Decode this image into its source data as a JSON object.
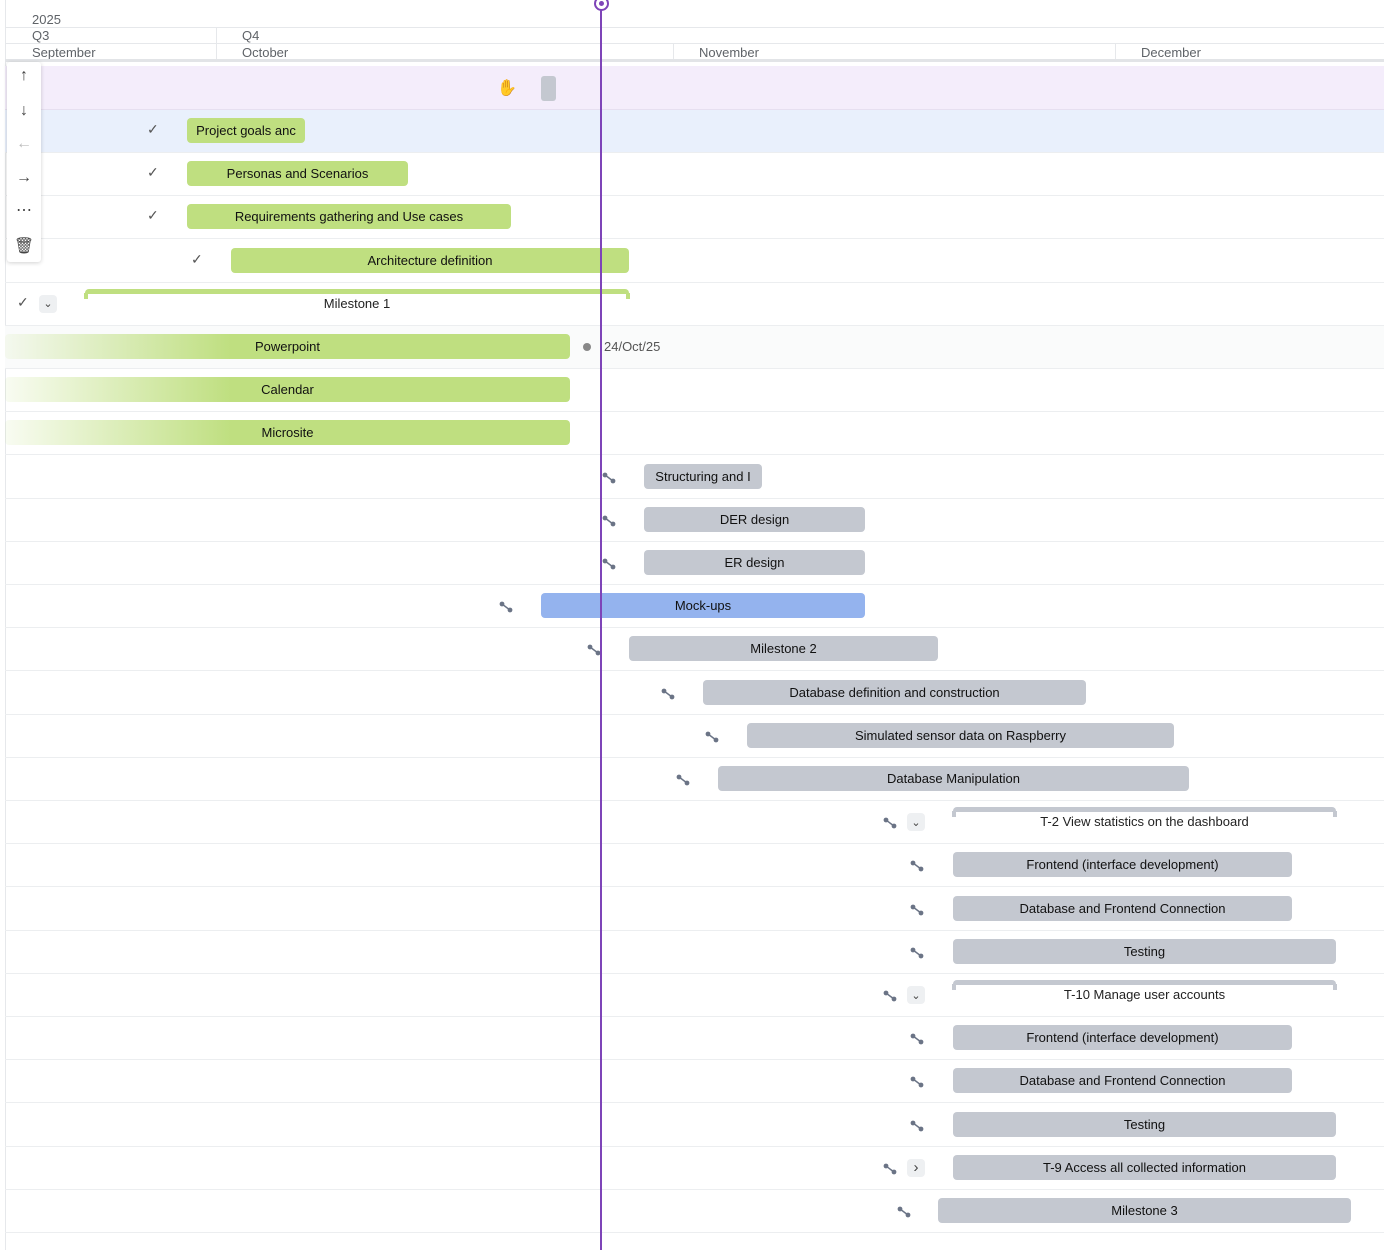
{
  "timeline": {
    "year": "2025",
    "quarters": [
      "Q3",
      "Q4"
    ],
    "months": [
      "September",
      "October",
      "November",
      "December"
    ],
    "today_label": "24/Oct/25",
    "today_color": "#7e44b8"
  },
  "toolbar": [
    "arrow-up-icon",
    "arrow-down-icon",
    "arrow-left-icon",
    "arrow-right-icon",
    "more-icon",
    "trash-icon"
  ],
  "colors": {
    "done": "#bfdf80",
    "pending": "#c4c8d0",
    "selected": "#94b3ee"
  },
  "rows": [
    {
      "label": "Project goals anc",
      "status": "done"
    },
    {
      "label": "Personas and Scenarios",
      "status": "done"
    },
    {
      "label": "Requirements gathering and Use cases",
      "status": "done"
    },
    {
      "label": "Architecture definition",
      "status": "done"
    },
    {
      "label": "Milestone 1",
      "status": "done",
      "group": true
    },
    {
      "label": "Powerpoint",
      "status": "done"
    },
    {
      "label": "Calendar",
      "status": "done"
    },
    {
      "label": "Microsite",
      "status": "done"
    },
    {
      "label": "Structuring and I",
      "status": "pending"
    },
    {
      "label": "DER design",
      "status": "pending"
    },
    {
      "label": "ER design",
      "status": "pending"
    },
    {
      "label": "Mock-ups",
      "status": "selected"
    },
    {
      "label": "Milestone 2",
      "status": "pending"
    },
    {
      "label": "Database definition and construction",
      "status": "pending"
    },
    {
      "label": "Simulated sensor data on Raspberry",
      "status": "pending"
    },
    {
      "label": "Database Manipulation",
      "status": "pending"
    },
    {
      "label": "T-2 View statistics on the dashboard",
      "status": "pending",
      "group": true
    },
    {
      "label": "Frontend (interface development)",
      "status": "pending"
    },
    {
      "label": "Database and Frontend Connection",
      "status": "pending"
    },
    {
      "label": "Testing",
      "status": "pending"
    },
    {
      "label": "T-10 Manage user accounts",
      "status": "pending",
      "group": true
    },
    {
      "label": "Frontend (interface development)",
      "status": "pending"
    },
    {
      "label": "Database and Frontend Connection",
      "status": "pending"
    },
    {
      "label": "Testing",
      "status": "pending"
    },
    {
      "label": "T-9 Access all collected information",
      "status": "pending",
      "collapsed": true
    },
    {
      "label": "Milestone 3",
      "status": "pending"
    }
  ]
}
